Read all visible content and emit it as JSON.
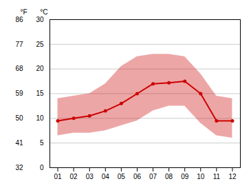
{
  "chart_data": {
    "type": "line",
    "x": [
      1,
      2,
      3,
      4,
      5,
      6,
      7,
      8,
      9,
      10,
      11,
      12
    ],
    "values": [
      9.5,
      10.0,
      10.5,
      11.5,
      13.0,
      15.0,
      17.0,
      17.2,
      17.5,
      15.0,
      9.5,
      9.5
    ],
    "lower": [
      6.5,
      7.0,
      7.0,
      7.5,
      8.5,
      9.5,
      11.5,
      12.5,
      12.5,
      9.0,
      6.5,
      6.0
    ],
    "upper": [
      14.0,
      14.5,
      15.0,
      17.0,
      20.5,
      22.5,
      23.0,
      23.0,
      22.5,
      19.0,
      14.5,
      14.0
    ],
    "color": "#cc0000",
    "marker": "circle",
    "xlim": [
      0.5,
      12.5
    ],
    "xticks": [
      {
        "value": 1,
        "label": "01"
      },
      {
        "value": 2,
        "label": "02"
      },
      {
        "value": 3,
        "label": "03"
      },
      {
        "value": 4,
        "label": "04"
      },
      {
        "value": 5,
        "label": "05"
      },
      {
        "value": 6,
        "label": "06"
      },
      {
        "value": 7,
        "label": "07"
      },
      {
        "value": 8,
        "label": "08"
      },
      {
        "value": 9,
        "label": "09"
      },
      {
        "value": 10,
        "label": "10"
      },
      {
        "value": 11,
        "label": "11"
      },
      {
        "value": 12,
        "label": "12"
      }
    ],
    "ylim": [
      0,
      30
    ],
    "yticks": [
      0,
      5,
      10,
      15,
      20,
      25,
      30
    ],
    "ylabel": "°C",
    "y2lim": [
      32,
      86
    ],
    "y2ticks": [
      32,
      41,
      50,
      59,
      68,
      77,
      86
    ],
    "y2label": "°F",
    "grid": "y"
  }
}
